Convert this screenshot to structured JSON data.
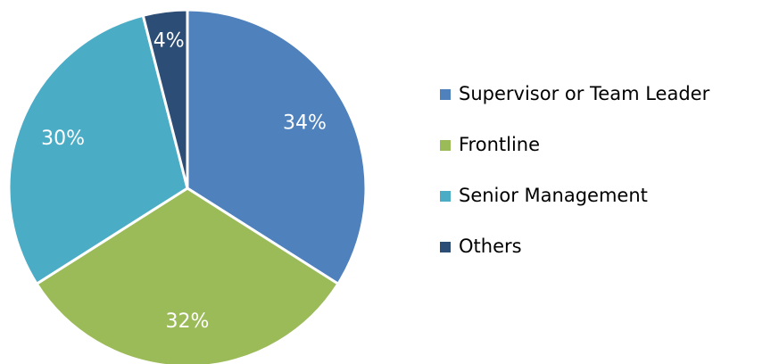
{
  "chart_data": {
    "type": "pie",
    "categories": [
      "Supervisor or Team Leader",
      "Frontline",
      "Senior Management",
      "Others"
    ],
    "values": [
      34,
      32,
      30,
      4
    ],
    "value_labels": [
      "34%",
      "32%",
      "30%",
      "4%"
    ],
    "colors": [
      "#4f81bd",
      "#9bbb59",
      "#4bacc6",
      "#2c4d75"
    ],
    "legend": "right"
  }
}
